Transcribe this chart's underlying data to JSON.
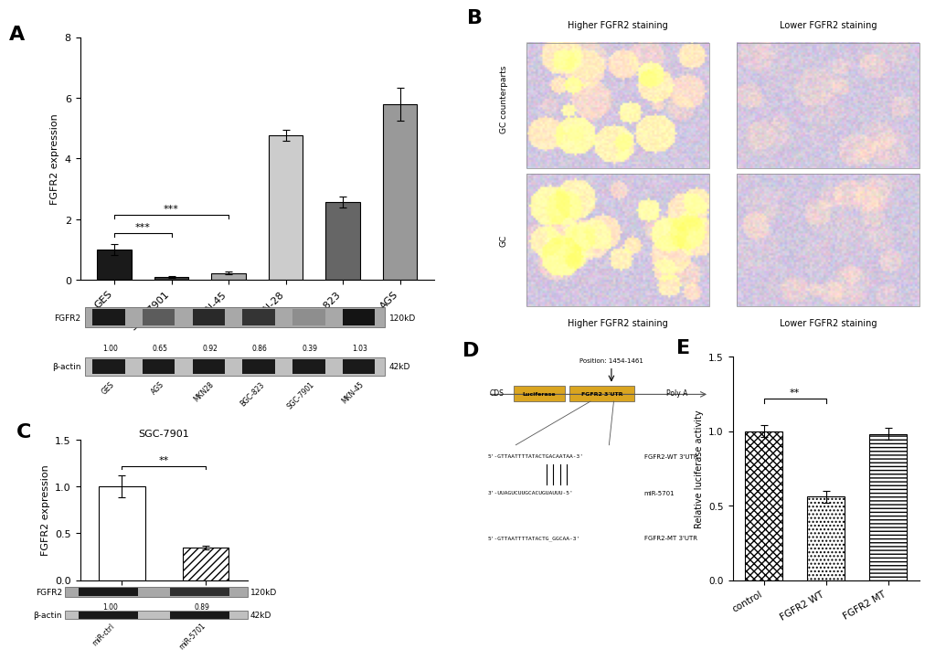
{
  "panel_A_bar": {
    "categories": [
      "GES",
      "SGC-7901",
      "MKN-45",
      "MKN-28",
      "BGC-823",
      "AGS"
    ],
    "values": [
      1.0,
      0.08,
      0.22,
      4.75,
      2.55,
      5.78
    ],
    "errors": [
      0.18,
      0.03,
      0.05,
      0.18,
      0.18,
      0.55
    ],
    "colors": [
      "#1a1a1a",
      "#3a3a3a",
      "#aaaaaa",
      "#cccccc",
      "#666666",
      "#999999"
    ],
    "ylabel": "FGFR2 expression",
    "ylim": [
      0,
      8
    ],
    "yticks": [
      0,
      2,
      4,
      6,
      8
    ]
  },
  "panel_A_wb": {
    "labels_fgfr2": [
      "1.00",
      "0.65",
      "0.92",
      "0.86",
      "0.39",
      "1.03"
    ],
    "xtick_labels": [
      "GES",
      "AGS",
      "MKN28",
      "BGC-823",
      "SGC-7901",
      "MKN-45"
    ],
    "fgfr2_label": "FGFR2",
    "beta_actin_label": "β-actin",
    "fgfr2_kd": "120kD",
    "beta_kd": "42kD",
    "band_intensities": [
      1.0,
      0.65,
      0.92,
      0.86,
      0.39,
      1.03
    ]
  },
  "panel_C_bar": {
    "categories": [
      "miR-ctrl",
      "miR-5701"
    ],
    "values": [
      1.0,
      0.35
    ],
    "errors": [
      0.12,
      0.02
    ],
    "hatch": [
      null,
      "////"
    ],
    "ylabel": "FGFR2 expression",
    "ylim": [
      0,
      1.5
    ],
    "yticks": [
      0.0,
      0.5,
      1.0,
      1.5
    ],
    "title": "SGC-7901"
  },
  "panel_C_wb": {
    "labels_fgfr2": [
      "1.00",
      "0.89"
    ],
    "xtick_labels": [
      "miR-ctrl",
      "miR-5701"
    ],
    "fgfr2_label": "FGFR2",
    "beta_actin_label": "β-actin",
    "fgfr2_kd": "120kD",
    "beta_kd": "42kD",
    "band_intensities_fgfr2": [
      1.0,
      0.89
    ],
    "band_intensities_beta": [
      1.0,
      1.0
    ]
  },
  "panel_D": {
    "position_text": "Position: 1454-1461",
    "cds_text": "CDS",
    "luciferase_text": "Luciferase",
    "fgfr2_utr_text": "FGFR2 3'UTR",
    "poly_a_text": "Poly A",
    "wt_seq": "5'-GTTAATTTTATACTGACAATAA-3'",
    "wt_label": "FGFR2-WT 3'UTR",
    "mir_seq": "3'-UUAGUCUUGCACUGUAUUU-5'",
    "mir_label": "miR-5701",
    "mt_seq": "5'-GTTAATTTTATACTG̲GGCAA-3'",
    "mt_label": "FGFR2-MT 3'UTR",
    "luciferase_color": "#DAA520",
    "fgfr2_utr_color": "#DAA520"
  },
  "panel_E_bar": {
    "categories": [
      "control",
      "FGFR2 WT",
      "FGFR2 MT"
    ],
    "values": [
      1.0,
      0.56,
      0.98
    ],
    "errors": [
      0.04,
      0.04,
      0.04
    ],
    "hatch": [
      "xxxx",
      "....",
      "----"
    ],
    "ylabel": "Relative luciferase activity",
    "ylim": [
      0,
      1.5
    ],
    "yticks": [
      0.0,
      0.5,
      1.0,
      1.5
    ]
  },
  "panel_B": {
    "col_titles_top": [
      "Higher FGFR2 staining",
      "Lower FGFR2 staining"
    ],
    "col_titles_bottom": [
      "Higher FGFR2 staining",
      "Lower FGFR2 staining"
    ],
    "row_labels": [
      "GC counterparts",
      "GC"
    ],
    "img_colors_higher": [
      "#C8895A",
      "#C07840"
    ],
    "img_colors_lower": [
      "#C8C0B0",
      "#C0B8A8"
    ]
  },
  "background_color": "#ffffff"
}
